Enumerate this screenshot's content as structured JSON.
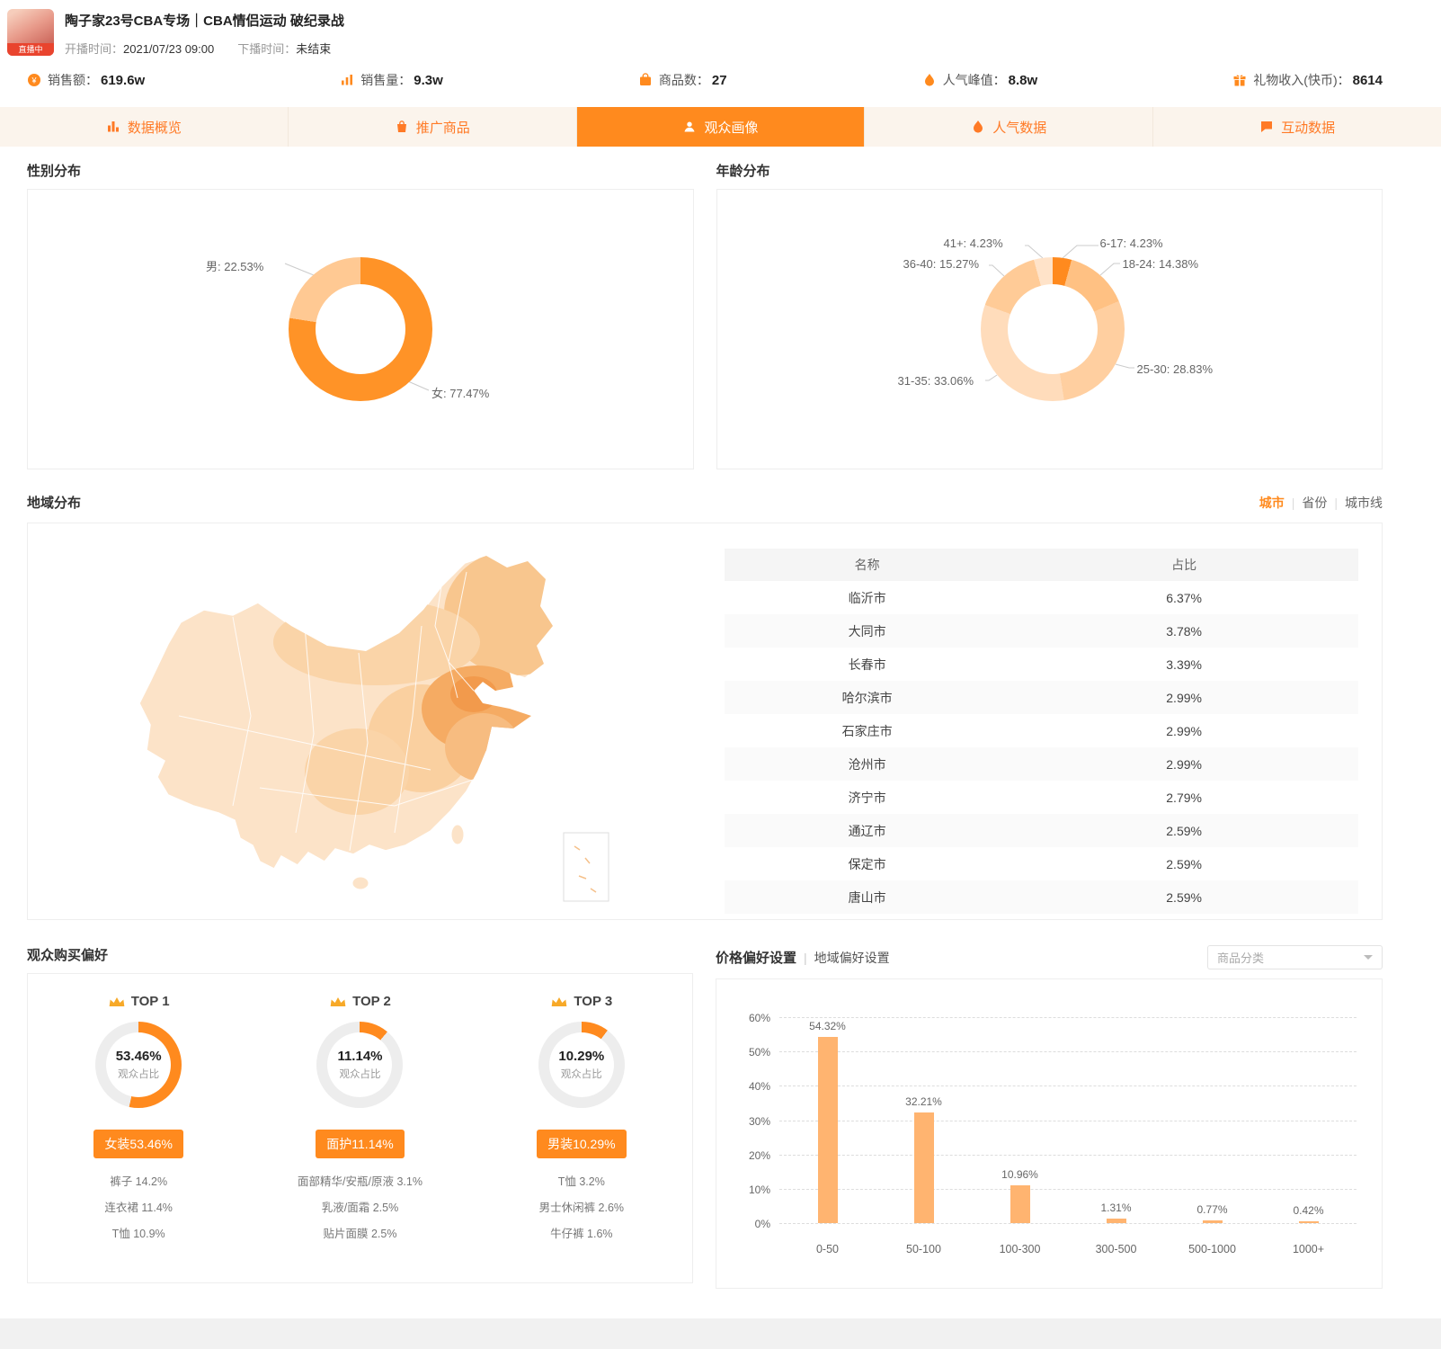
{
  "theme": {
    "accent": "#FF8A1E",
    "accent_light": "#FFB470"
  },
  "header": {
    "avatar_badge": "直播中",
    "title": "陶子家23号CBA专场｜CBA情侣运动 破纪录战",
    "start_label": "开播时间：",
    "start_time": "2021/07/23 09:00",
    "end_label": "下播时间：",
    "end_time": "未结束"
  },
  "stats": [
    {
      "icon": "coin-icon",
      "label": "销售额：",
      "value": "619.6w"
    },
    {
      "icon": "sales-trend-icon",
      "label": "销售量：",
      "value": "9.3w"
    },
    {
      "icon": "goods-icon",
      "label": "商品数：",
      "value": "27"
    },
    {
      "icon": "flame-icon",
      "label": "人气峰值：",
      "value": "8.8w"
    },
    {
      "icon": "gift-icon",
      "label": "礼物收入(快币)：",
      "value": "8614"
    }
  ],
  "tabs": [
    {
      "icon": "bar-chart-icon",
      "label": "数据概览",
      "active": false
    },
    {
      "icon": "shopping-bag-icon",
      "label": "推广商品",
      "active": false
    },
    {
      "icon": "audience-icon",
      "label": "观众画像",
      "active": true
    },
    {
      "icon": "flame-icon",
      "label": "人气数据",
      "active": false
    },
    {
      "icon": "chat-icon",
      "label": "互动数据",
      "active": false
    }
  ],
  "sections": {
    "gender": "性别分布",
    "age": "年龄分布",
    "region": "地域分布",
    "purchase": "观众购买偏好"
  },
  "region": {
    "links": [
      {
        "label": "城市",
        "active": true
      },
      {
        "label": "省份",
        "active": false
      },
      {
        "label": "城市线",
        "active": false
      }
    ],
    "separator": "|",
    "table": {
      "headers": [
        "名称",
        "占比"
      ],
      "rows": [
        [
          "临沂市",
          "6.37%"
        ],
        [
          "大同市",
          "3.78%"
        ],
        [
          "长春市",
          "3.39%"
        ],
        [
          "哈尔滨市",
          "2.99%"
        ],
        [
          "石家庄市",
          "2.99%"
        ],
        [
          "沧州市",
          "2.99%"
        ],
        [
          "济宁市",
          "2.79%"
        ],
        [
          "通辽市",
          "2.59%"
        ],
        [
          "保定市",
          "2.59%"
        ],
        [
          "唐山市",
          "2.59%"
        ]
      ]
    }
  },
  "price": {
    "title1": "价格偏好设置",
    "separator": "|",
    "title2": "地域偏好设置",
    "dropdown_value": "商品分类"
  },
  "top_preferences": [
    {
      "rank": "TOP 1",
      "percent": "53.46%",
      "caption": "观众占比",
      "tag": "女装53.46%",
      "items": [
        "裤子 14.2%",
        "连衣裙 11.4%",
        "T恤 10.9%"
      ]
    },
    {
      "rank": "TOP 2",
      "percent": "11.14%",
      "caption": "观众占比",
      "tag": "面护11.14%",
      "items": [
        "面部精华/安瓶/原液 3.1%",
        "乳液/面霜 2.5%",
        "贴片面膜 2.5%"
      ]
    },
    {
      "rank": "TOP 3",
      "percent": "10.29%",
      "caption": "观众占比",
      "tag": "男装10.29%",
      "items": [
        "T恤 3.2%",
        "男士休闲裤 2.6%",
        "牛仔裤 1.6%"
      ]
    }
  ],
  "chart_data": [
    {
      "type": "pie",
      "title": "性别分布",
      "labels": [
        "女",
        "男"
      ],
      "values": [
        77.47,
        22.53
      ],
      "colors": [
        "#FF9327",
        "#FFC993"
      ],
      "donut": true,
      "label_texts": {
        "male": "男: 22.53%",
        "female": "女: 77.47%"
      }
    },
    {
      "type": "pie",
      "title": "年龄分布",
      "labels": [
        "6-17",
        "18-24",
        "25-30",
        "31-35",
        "36-40",
        "41+"
      ],
      "values": [
        4.23,
        14.38,
        28.83,
        33.06,
        15.27,
        4.23
      ],
      "colors": [
        "#FF8A1E",
        "#FFC183",
        "#FFCFA0",
        "#FFDCBB",
        "#FFCB97",
        "#FFE3C9"
      ],
      "donut": true,
      "label_texts": {
        "6_17": "6-17: 4.23%",
        "18_24": "18-24: 14.38%",
        "25_30": "25-30: 28.83%",
        "31_35": "31-35: 33.06%",
        "36_40": "36-40: 15.27%",
        "41_plus": "41+: 4.23%"
      }
    },
    {
      "type": "bar",
      "title": "价格偏好",
      "categories": [
        "0-50",
        "50-100",
        "100-300",
        "300-500",
        "500-1000",
        "1000+"
      ],
      "values": [
        54.32,
        32.21,
        10.96,
        1.31,
        0.77,
        0.42
      ],
      "value_labels": [
        "54.32%",
        "32.21%",
        "10.96%",
        "1.31%",
        "0.77%",
        "0.42%"
      ],
      "ylim": [
        0,
        60
      ],
      "yticks_top_down": [
        "60%",
        "50%",
        "40%",
        "30%",
        "20%",
        "10%",
        "0%"
      ],
      "bar_color": "#FFB470",
      "grid": "dashed-horizontal",
      "legend": "none"
    },
    {
      "type": "pie",
      "title": "观众购买偏好TOP占比",
      "labels": [
        "女装",
        "面护",
        "男装"
      ],
      "values": [
        53.46,
        11.14,
        10.29
      ],
      "ring_color": "#FF8A1E",
      "rest_color": "#EDEDED"
    }
  ]
}
